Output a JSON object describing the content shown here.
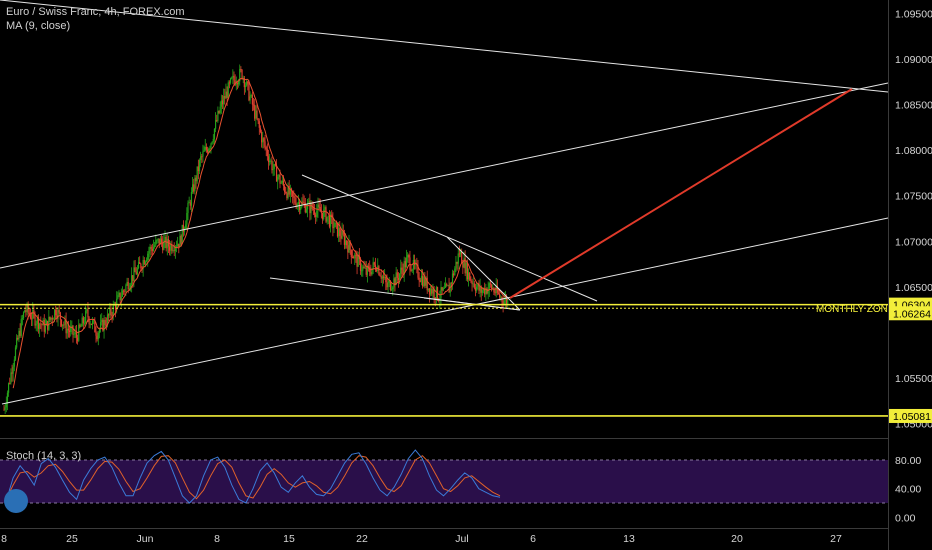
{
  "header": {
    "symbol_line": "Euro / Swiss Franc, 4h, FOREX.com",
    "ma_line": "MA (9, close)",
    "stoch_line": "Stoch (14, 3, 3)"
  },
  "colors": {
    "background": "#000000",
    "candle_up": "#26a31a",
    "candle_down": "#e0412f",
    "ma": "#e8512f",
    "trendline": "#e6e6e6",
    "target_line": "#e03a2a",
    "zone": "#f2ee3a",
    "stoch_k": "#3b7bd8",
    "stoch_d": "#e0612a",
    "stoch_band": "#2a0f4a"
  },
  "chart_data": {
    "type": "candlestick",
    "symbol": "Euro / Swiss Franc, 4h, FOREX.com",
    "indicators": [
      "MA (9, close)",
      "Stoch (14, 3, 3)"
    ],
    "x_tick_labels": [
      "8",
      "25",
      "Jun",
      "8",
      "15",
      "22",
      "Jul",
      "6",
      "13",
      "20",
      "27"
    ],
    "price_tick_labels": [
      "1.09500",
      "1.09000",
      "1.08500",
      "1.08000",
      "1.07500",
      "1.07000",
      "1.06500",
      "1.05500",
      "1.05000"
    ],
    "price_axis": {
      "min": 1.0485,
      "max": 1.0965
    },
    "price_badges": [
      {
        "label": "1.06304",
        "value": 1.06304
      },
      {
        "label": "1.06264",
        "value": 1.06264
      },
      {
        "label": "1.05081",
        "value": 1.05081
      }
    ],
    "zone_label": "MONTHLY ZONE",
    "close_path": [
      [
        0,
        1.0515
      ],
      [
        1.5,
        1.0575
      ],
      [
        3,
        1.0625
      ],
      [
        4.5,
        1.0615
      ],
      [
        6,
        1.0605
      ],
      [
        7.5,
        1.0625
      ],
      [
        9,
        1.0605
      ],
      [
        10.5,
        1.0595
      ],
      [
        12,
        1.062
      ],
      [
        13.5,
        1.06
      ],
      [
        15,
        1.0615
      ],
      [
        16.5,
        1.0635
      ],
      [
        18,
        1.0655
      ],
      [
        19.5,
        1.067
      ],
      [
        21,
        1.069
      ],
      [
        22.5,
        1.07
      ],
      [
        24,
        1.0695
      ],
      [
        25.5,
        1.07
      ],
      [
        27,
        1.0745
      ],
      [
        28.5,
        1.079
      ],
      [
        30,
        1.081
      ],
      [
        31.5,
        1.085
      ],
      [
        33,
        1.0875
      ],
      [
        34.5,
        1.0885
      ],
      [
        36,
        1.085
      ],
      [
        37.5,
        1.081
      ],
      [
        39,
        1.078
      ],
      [
        40.5,
        1.076
      ],
      [
        42,
        1.0745
      ],
      [
        43.5,
        1.074
      ],
      [
        45,
        1.0735
      ],
      [
        46.5,
        1.073
      ],
      [
        48,
        1.0715
      ],
      [
        49.5,
        1.07
      ],
      [
        51,
        1.068
      ],
      [
        52.5,
        1.0665
      ],
      [
        54,
        1.0675
      ],
      [
        55.5,
        1.065
      ],
      [
        57,
        1.066
      ],
      [
        58.5,
        1.068
      ],
      [
        60,
        1.0665
      ],
      [
        61.5,
        1.065
      ],
      [
        63,
        1.064
      ],
      [
        64.5,
        1.0648
      ],
      [
        66,
        1.0688
      ],
      [
        67.5,
        1.066
      ],
      [
        69,
        1.0645
      ],
      [
        70.5,
        1.065
      ],
      [
        72,
        1.0638
      ],
      [
        73,
        1.0634
      ]
    ],
    "ma_period": 9,
    "stochastic": {
      "levels": [
        80,
        40,
        0
      ],
      "upper_band": 80,
      "lower_band": 20,
      "k": [
        22,
        55,
        72,
        60,
        45,
        75,
        82,
        70,
        52,
        35,
        25,
        52,
        68,
        80,
        84,
        70,
        48,
        30,
        30,
        55,
        76,
        86,
        92,
        80,
        55,
        30,
        20,
        30,
        58,
        80,
        84,
        70,
        45,
        25,
        20,
        40,
        65,
        76,
        62,
        42,
        35,
        48,
        58,
        42,
        32,
        30,
        40,
        58,
        76,
        88,
        90,
        75,
        55,
        38,
        30,
        42,
        60,
        82,
        94,
        82,
        58,
        38,
        30,
        40,
        52,
        62,
        55,
        40,
        35,
        30,
        28
      ],
      "d": [
        25,
        45,
        62,
        64,
        56,
        62,
        72,
        74,
        64,
        50,
        38,
        38,
        52,
        68,
        78,
        77,
        67,
        50,
        36,
        40,
        55,
        72,
        85,
        86,
        76,
        55,
        35,
        26,
        38,
        58,
        75,
        80,
        70,
        48,
        30,
        27,
        42,
        60,
        68,
        60,
        48,
        42,
        48,
        50,
        44,
        35,
        33,
        42,
        58,
        76,
        86,
        84,
        72,
        55,
        40,
        36,
        44,
        62,
        80,
        86,
        76,
        58,
        40,
        36,
        44,
        55,
        58,
        50,
        42,
        35,
        30
      ]
    }
  }
}
